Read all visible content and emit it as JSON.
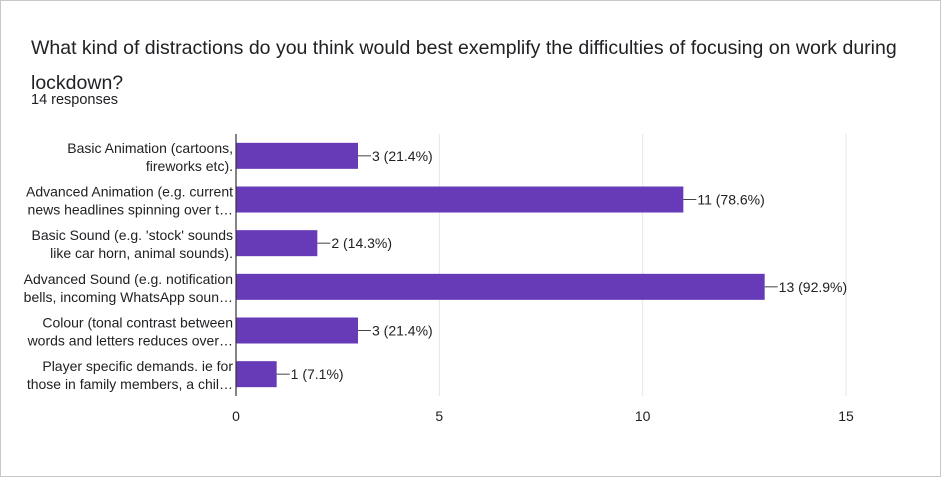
{
  "question": {
    "title": "What kind of distractions do you think would best exemplify the difficulties of focusing on work during lockdown?",
    "responses": "14 responses"
  },
  "colors": {
    "bar": "#673ab7",
    "grid": "#e6e6e6",
    "axis": "#333333",
    "text": "#202124"
  },
  "chart_data": {
    "type": "bar",
    "orientation": "horizontal",
    "categories": [
      [
        "Basic Animation (cartoons,",
        "fireworks etc)."
      ],
      [
        "Advanced Animation (e.g. current",
        "news headlines spinning over t…"
      ],
      [
        "Basic Sound (e.g. 'stock' sounds",
        "like car horn, animal sounds)."
      ],
      [
        "Advanced Sound (e.g. notification",
        "bells, incoming WhatsApp soun…"
      ],
      [
        "Colour (tonal contrast between",
        "words and letters reduces over…"
      ],
      [
        "Player specific demands. ie for",
        "those in family members, a chil…"
      ]
    ],
    "values": [
      3,
      11,
      2,
      13,
      3,
      1
    ],
    "data_labels": [
      "3 (21.4%)",
      "11 (78.6%)",
      "2 (14.3%)",
      "13 (92.9%)",
      "3 (21.4%)",
      "1 (7.1%)"
    ],
    "xlim": [
      0,
      15
    ],
    "xticks": [
      0,
      5,
      10,
      15
    ],
    "grid": true,
    "legend": "none"
  }
}
